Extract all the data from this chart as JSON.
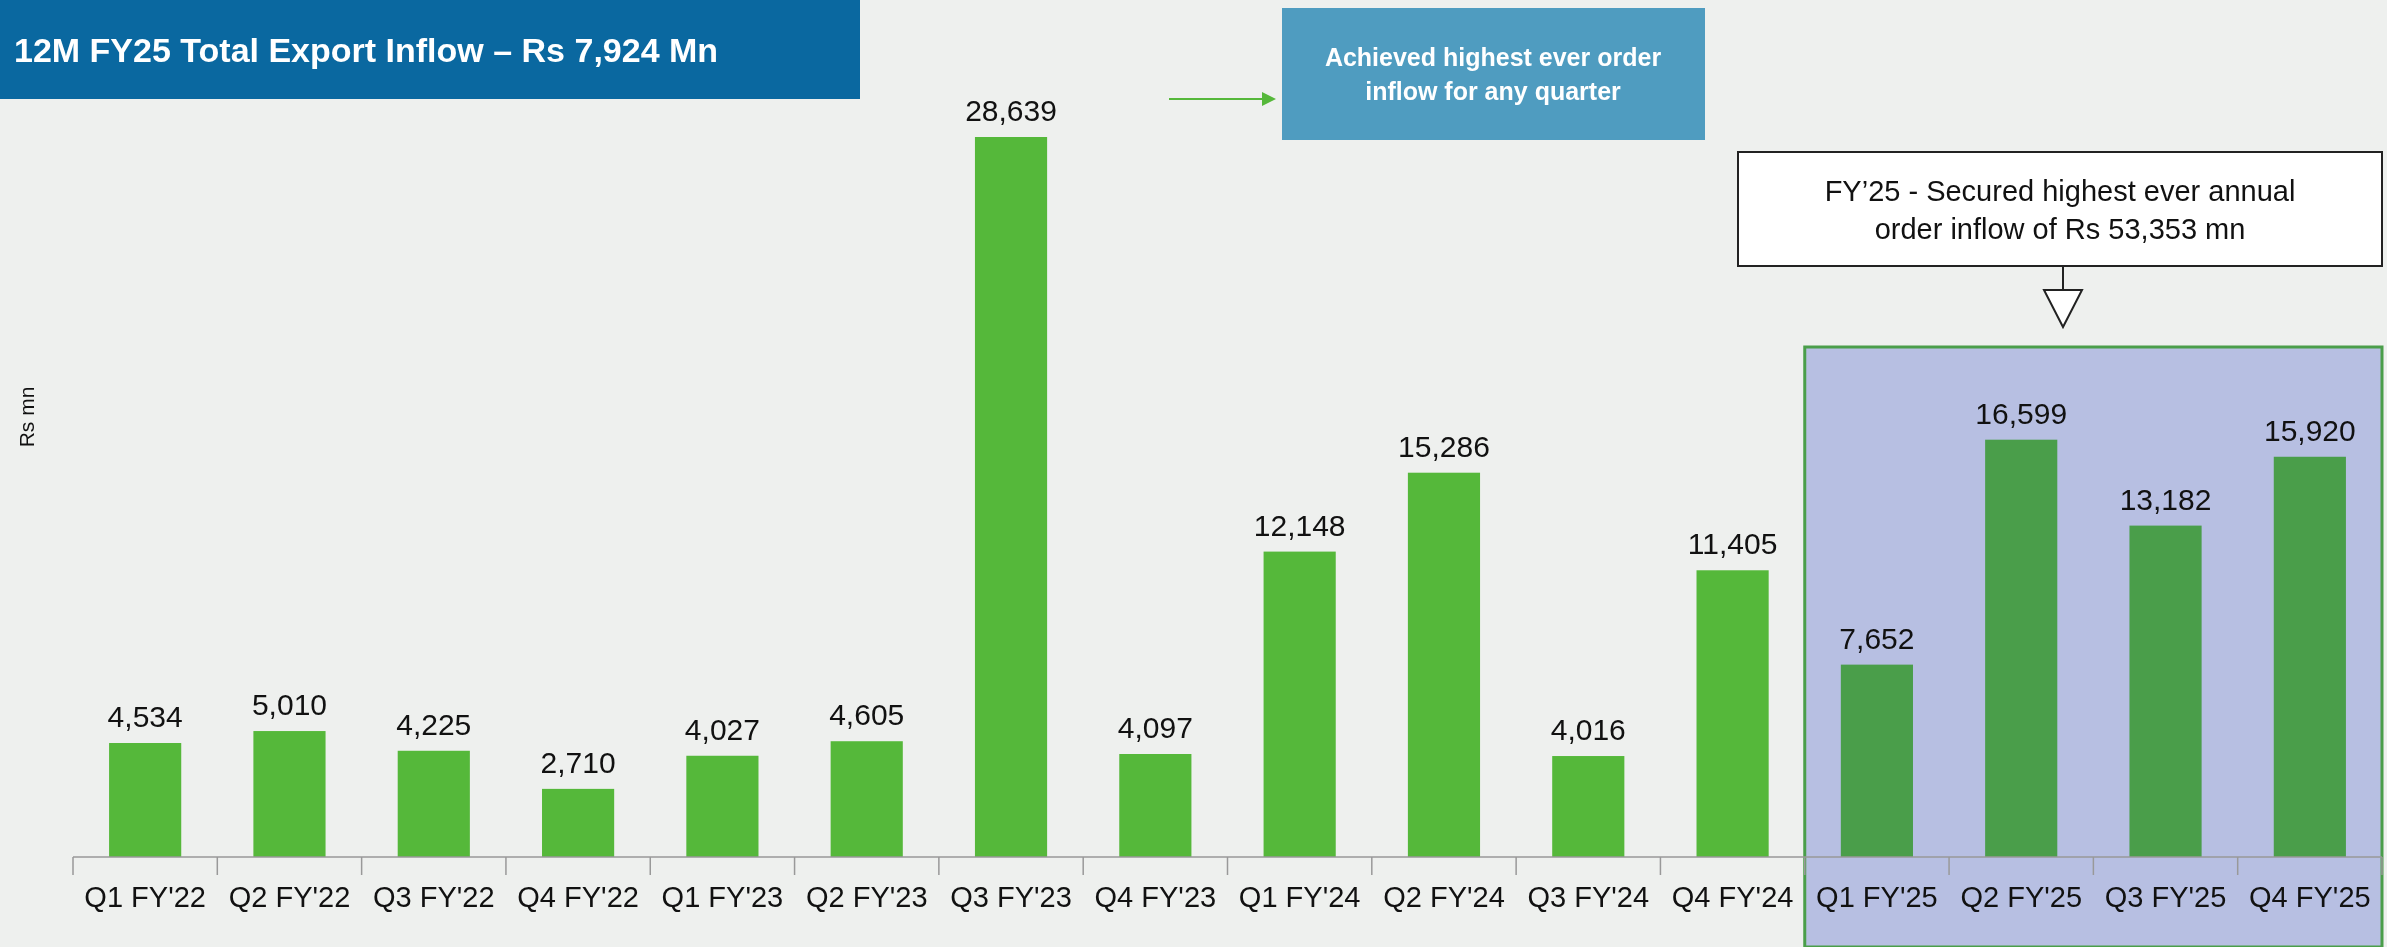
{
  "chart_data": {
    "type": "bar",
    "title": "12M FY25 Total Export Inflow – Rs 7,924 Mn",
    "ylabel": "Rs mn",
    "categories": [
      "Q1 FY'22",
      "Q2 FY'22",
      "Q3 FY'22",
      "Q4 FY'22",
      "Q1 FY'23",
      "Q2 FY'23",
      "Q3 FY'23",
      "Q4 FY'23",
      "Q1 FY'24",
      "Q2 FY'24",
      "Q3 FY'24",
      "Q4 FY'24",
      "Q1 FY'25",
      "Q2 FY'25",
      "Q3 FY'25",
      "Q4 FY'25"
    ],
    "values": [
      4534,
      5010,
      4225,
      2710,
      4027,
      4605,
      28639,
      4097,
      12148,
      15286,
      4016,
      11405,
      7652,
      16599,
      13182,
      15920
    ],
    "colors": [
      "#55b83a",
      "#55b83a",
      "#55b83a",
      "#55b83a",
      "#55b83a",
      "#55b83a",
      "#55b83a",
      "#55b83a",
      "#55b83a",
      "#55b83a",
      "#55b83a",
      "#55b83a",
      "#4a9e4a",
      "#4a9e4a",
      "#4a9e4a",
      "#4a9e4a"
    ],
    "value_labels": [
      "4,534",
      "5,010",
      "4,225",
      "2,710",
      "4,027",
      "4,605",
      "28,639",
      "4,097",
      "12,148",
      "15,286",
      "4,016",
      "11,405",
      "7,652",
      "16,599",
      "13,182",
      "15,920"
    ],
    "bands": [
      {
        "axis": "x",
        "from": "Q1 FY'25",
        "to": "Q4 FY'25",
        "color": "#b7bfe2"
      }
    ],
    "annotations": [
      "Achieved highest ever order inflow for any quarter",
      "FY’25 - Secured highest ever annual order inflow of Rs 53,353 mn"
    ]
  }
}
